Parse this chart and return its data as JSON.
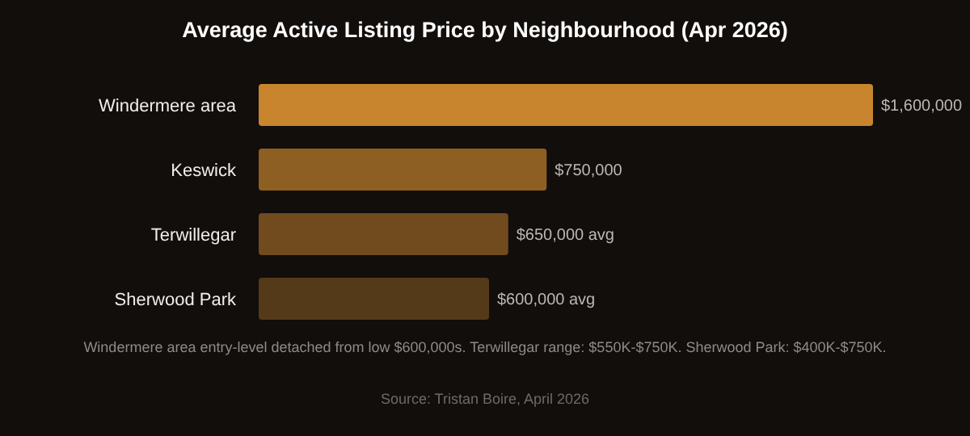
{
  "chart_data": {
    "type": "bar",
    "orientation": "horizontal",
    "title": "Average Active Listing Price by Neighbourhood (Apr 2026)",
    "categories": [
      "Windermere area",
      "Keswick",
      "Terwillegar",
      "Sherwood Park"
    ],
    "values": [
      1600000,
      750000,
      650000,
      600000
    ],
    "colors": [
      "#c8852e",
      "#8e5f22",
      "#714b1d",
      "#553a19"
    ],
    "value_labels": [
      "$1,600,000",
      "$750,000",
      "$650,000 avg",
      "$600,000 avg"
    ],
    "xlim": [
      0,
      1600000
    ],
    "tick_labels": "y",
    "grid": false,
    "legend": false,
    "annotations": [
      "Windermere area entry-level detached from low $600,000s. Terwillegar range: $550K-$750K. Sherwood Park: $400K-$750K.",
      "Source: Tristan Boire, April 2026"
    ]
  }
}
